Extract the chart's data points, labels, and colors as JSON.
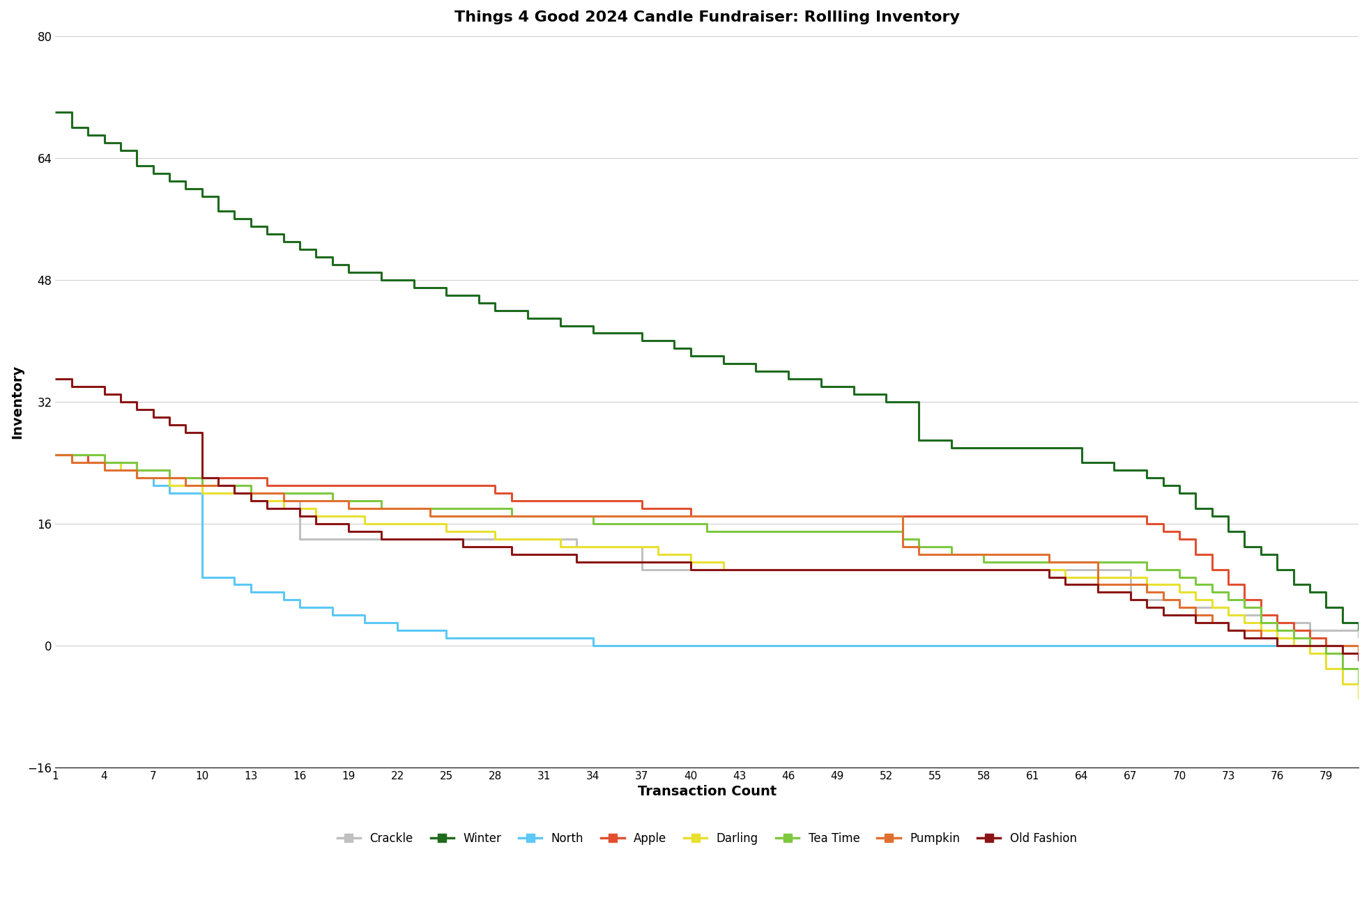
{
  "title": "Things 4 Good 2024 Candle Fundraiser: Rollling Inventory",
  "xlabel": "Transaction Count",
  "ylabel": "Inventory",
  "ylim": [
    -16,
    80
  ],
  "yticks": [
    -16,
    0,
    16,
    32,
    48,
    64,
    80
  ],
  "xticks": [
    1,
    4,
    7,
    10,
    13,
    16,
    19,
    22,
    25,
    28,
    31,
    34,
    37,
    40,
    43,
    46,
    49,
    52,
    55,
    58,
    61,
    64,
    67,
    70,
    73,
    76,
    79
  ],
  "series": {
    "Crackle": {
      "color": "#c0c0c0",
      "data_x": [
        1,
        2,
        3,
        4,
        5,
        6,
        7,
        8,
        9,
        10,
        11,
        12,
        13,
        14,
        15,
        16,
        17,
        18,
        19,
        20,
        21,
        22,
        23,
        24,
        25,
        26,
        27,
        28,
        29,
        30,
        31,
        32,
        33,
        34,
        35,
        36,
        37,
        38,
        39,
        40,
        41,
        42,
        43,
        44,
        45,
        46,
        47,
        48,
        49,
        50,
        51,
        52,
        53,
        54,
        55,
        56,
        57,
        58,
        59,
        60,
        61,
        62,
        63,
        64,
        65,
        66,
        67,
        68,
        69,
        70,
        71,
        72,
        73,
        74,
        75,
        76,
        77,
        78,
        79,
        80,
        81
      ],
      "data_y": [
        25,
        25,
        24,
        24,
        24,
        23,
        23,
        22,
        22,
        21,
        21,
        21,
        20,
        20,
        19,
        14,
        14,
        14,
        14,
        14,
        14,
        14,
        14,
        14,
        14,
        14,
        14,
        14,
        14,
        14,
        14,
        14,
        13,
        13,
        13,
        13,
        10,
        10,
        10,
        10,
        10,
        10,
        10,
        10,
        10,
        10,
        10,
        10,
        10,
        10,
        10,
        10,
        10,
        10,
        10,
        10,
        10,
        10,
        10,
        10,
        10,
        10,
        10,
        10,
        10,
        10,
        6,
        6,
        6,
        5,
        5,
        5,
        4,
        4,
        3,
        3,
        3,
        2,
        2,
        2,
        1
      ]
    },
    "Winter": {
      "color": "#1e6b1e",
      "data_x": [
        1,
        2,
        3,
        4,
        5,
        6,
        7,
        8,
        9,
        10,
        11,
        12,
        13,
        14,
        15,
        16,
        17,
        18,
        19,
        20,
        21,
        22,
        23,
        24,
        25,
        26,
        27,
        28,
        29,
        30,
        31,
        32,
        33,
        34,
        35,
        36,
        37,
        38,
        39,
        40,
        41,
        42,
        43,
        44,
        45,
        46,
        47,
        48,
        49,
        50,
        51,
        52,
        53,
        54,
        55,
        56,
        57,
        58,
        59,
        60,
        61,
        62,
        63,
        64,
        65,
        66,
        67,
        68,
        69,
        70,
        71,
        72,
        73,
        74,
        75,
        76,
        77,
        78,
        79,
        80,
        81
      ],
      "data_y": [
        70,
        68,
        67,
        66,
        65,
        63,
        62,
        61,
        60,
        59,
        57,
        56,
        55,
        54,
        53,
        52,
        51,
        50,
        49,
        49,
        48,
        48,
        47,
        47,
        46,
        46,
        45,
        44,
        44,
        43,
        43,
        42,
        42,
        41,
        41,
        41,
        40,
        40,
        39,
        38,
        38,
        37,
        37,
        36,
        36,
        35,
        35,
        34,
        34,
        33,
        33,
        32,
        32,
        27,
        27,
        26,
        26,
        26,
        26,
        26,
        26,
        26,
        26,
        24,
        24,
        23,
        23,
        22,
        21,
        20,
        18,
        17,
        15,
        13,
        12,
        10,
        8,
        7,
        5,
        3,
        2
      ]
    },
    "North": {
      "color": "#5bc8f5",
      "data_x": [
        1,
        2,
        3,
        4,
        5,
        6,
        7,
        8,
        9,
        10,
        11,
        12,
        13,
        14,
        15,
        16,
        17,
        18,
        19,
        20,
        21,
        22,
        23,
        24,
        25,
        26,
        27,
        28,
        29,
        30,
        31,
        32,
        33,
        34,
        35,
        36,
        37,
        38,
        39,
        40,
        41,
        42,
        43,
        44,
        45,
        46,
        47,
        48,
        49,
        50,
        51,
        52,
        53,
        54,
        55,
        56,
        57,
        58,
        59,
        60,
        61,
        62,
        63,
        64,
        65,
        66,
        67,
        68,
        69,
        70,
        71,
        72,
        73,
        74,
        75,
        76,
        77,
        78,
        79,
        80,
        81
      ],
      "data_y": [
        25,
        25,
        24,
        24,
        23,
        22,
        21,
        20,
        20,
        9,
        9,
        8,
        7,
        7,
        6,
        5,
        5,
        4,
        4,
        3,
        3,
        2,
        2,
        2,
        1,
        1,
        1,
        1,
        1,
        1,
        1,
        1,
        1,
        0,
        0,
        0,
        0,
        0,
        0,
        0,
        0,
        0,
        0,
        0,
        0,
        0,
        0,
        0,
        0,
        0,
        0,
        0,
        0,
        0,
        0,
        0,
        0,
        0,
        0,
        0,
        0,
        0,
        0,
        0,
        0,
        0,
        0,
        0,
        0,
        0,
        0,
        0,
        0,
        0,
        0,
        0,
        0,
        0,
        0,
        0,
        0
      ]
    },
    "Apple": {
      "color": "#e05030",
      "data_x": [
        1,
        2,
        3,
        4,
        5,
        6,
        7,
        8,
        9,
        10,
        11,
        12,
        13,
        14,
        15,
        16,
        17,
        18,
        19,
        20,
        21,
        22,
        23,
        24,
        25,
        26,
        27,
        28,
        29,
        30,
        31,
        32,
        33,
        34,
        35,
        36,
        37,
        38,
        39,
        40,
        41,
        42,
        43,
        44,
        45,
        46,
        47,
        48,
        49,
        50,
        51,
        52,
        53,
        54,
        55,
        56,
        57,
        58,
        59,
        60,
        61,
        62,
        63,
        64,
        65,
        66,
        67,
        68,
        69,
        70,
        71,
        72,
        73,
        74,
        75,
        76,
        77,
        78,
        79,
        80,
        81
      ],
      "data_y": [
        25,
        25,
        24,
        24,
        24,
        23,
        23,
        22,
        22,
        22,
        22,
        22,
        22,
        21,
        21,
        21,
        21,
        21,
        21,
        21,
        21,
        21,
        21,
        21,
        21,
        21,
        21,
        20,
        19,
        19,
        19,
        19,
        19,
        19,
        19,
        19,
        18,
        18,
        18,
        17,
        17,
        17,
        17,
        17,
        17,
        17,
        17,
        17,
        17,
        17,
        17,
        17,
        17,
        17,
        17,
        17,
        17,
        17,
        17,
        17,
        17,
        17,
        17,
        17,
        17,
        17,
        17,
        16,
        15,
        14,
        12,
        10,
        8,
        6,
        4,
        3,
        2,
        1,
        0,
        0,
        -1
      ]
    },
    "Darling": {
      "color": "#e8e030",
      "data_x": [
        1,
        2,
        3,
        4,
        5,
        6,
        7,
        8,
        9,
        10,
        11,
        12,
        13,
        14,
        15,
        16,
        17,
        18,
        19,
        20,
        21,
        22,
        23,
        24,
        25,
        26,
        27,
        28,
        29,
        30,
        31,
        32,
        33,
        34,
        35,
        36,
        37,
        38,
        39,
        40,
        41,
        42,
        43,
        44,
        45,
        46,
        47,
        48,
        49,
        50,
        51,
        52,
        53,
        54,
        55,
        56,
        57,
        58,
        59,
        60,
        61,
        62,
        63,
        64,
        65,
        66,
        67,
        68,
        69,
        70,
        71,
        72,
        73,
        74,
        75,
        76,
        77,
        78,
        79,
        80,
        81
      ],
      "data_y": [
        25,
        24,
        24,
        24,
        23,
        22,
        22,
        21,
        21,
        20,
        20,
        20,
        19,
        19,
        18,
        18,
        17,
        17,
        17,
        16,
        16,
        16,
        16,
        16,
        15,
        15,
        15,
        14,
        14,
        14,
        14,
        13,
        13,
        13,
        13,
        13,
        13,
        12,
        12,
        11,
        11,
        10,
        10,
        10,
        10,
        10,
        10,
        10,
        10,
        10,
        10,
        10,
        10,
        10,
        10,
        10,
        10,
        10,
        10,
        10,
        10,
        10,
        9,
        9,
        9,
        9,
        9,
        8,
        8,
        7,
        6,
        5,
        4,
        3,
        2,
        1,
        0,
        -1,
        -3,
        -5,
        -7
      ]
    },
    "Tea Time": {
      "color": "#7ec840",
      "data_x": [
        1,
        2,
        3,
        4,
        5,
        6,
        7,
        8,
        9,
        10,
        11,
        12,
        13,
        14,
        15,
        16,
        17,
        18,
        19,
        20,
        21,
        22,
        23,
        24,
        25,
        26,
        27,
        28,
        29,
        30,
        31,
        32,
        33,
        34,
        35,
        36,
        37,
        38,
        39,
        40,
        41,
        42,
        43,
        44,
        45,
        46,
        47,
        48,
        49,
        50,
        51,
        52,
        53,
        54,
        55,
        56,
        57,
        58,
        59,
        60,
        61,
        62,
        63,
        64,
        65,
        66,
        67,
        68,
        69,
        70,
        71,
        72,
        73,
        74,
        75,
        76,
        77,
        78,
        79,
        80,
        81
      ],
      "data_y": [
        25,
        25,
        25,
        24,
        24,
        23,
        23,
        22,
        22,
        21,
        21,
        21,
        20,
        20,
        20,
        20,
        20,
        19,
        19,
        19,
        18,
        18,
        18,
        18,
        18,
        18,
        18,
        18,
        17,
        17,
        17,
        17,
        17,
        16,
        16,
        16,
        16,
        16,
        16,
        16,
        15,
        15,
        15,
        15,
        15,
        15,
        15,
        15,
        15,
        15,
        15,
        15,
        14,
        13,
        13,
        12,
        12,
        11,
        11,
        11,
        11,
        11,
        11,
        11,
        11,
        11,
        11,
        10,
        10,
        9,
        8,
        7,
        6,
        5,
        3,
        2,
        1,
        0,
        -1,
        -3,
        -5
      ]
    },
    "Pumpkin": {
      "color": "#e07030",
      "data_x": [
        1,
        2,
        3,
        4,
        5,
        6,
        7,
        8,
        9,
        10,
        11,
        12,
        13,
        14,
        15,
        16,
        17,
        18,
        19,
        20,
        21,
        22,
        23,
        24,
        25,
        26,
        27,
        28,
        29,
        30,
        31,
        32,
        33,
        34,
        35,
        36,
        37,
        38,
        39,
        40,
        41,
        42,
        43,
        44,
        45,
        46,
        47,
        48,
        49,
        50,
        51,
        52,
        53,
        54,
        55,
        56,
        57,
        58,
        59,
        60,
        61,
        62,
        63,
        64,
        65,
        66,
        67,
        68,
        69,
        70,
        71,
        72,
        73,
        74,
        75,
        76,
        77,
        78,
        79,
        80,
        81
      ],
      "data_y": [
        25,
        24,
        24,
        23,
        23,
        22,
        22,
        22,
        21,
        21,
        21,
        20,
        20,
        20,
        19,
        19,
        19,
        19,
        18,
        18,
        18,
        18,
        18,
        17,
        17,
        17,
        17,
        17,
        17,
        17,
        17,
        17,
        17,
        17,
        17,
        17,
        17,
        17,
        17,
        17,
        17,
        17,
        17,
        17,
        17,
        17,
        17,
        17,
        17,
        17,
        17,
        17,
        13,
        12,
        12,
        12,
        12,
        12,
        12,
        12,
        12,
        11,
        11,
        11,
        8,
        8,
        8,
        7,
        6,
        5,
        4,
        3,
        2,
        2,
        1,
        0,
        0,
        0,
        0,
        0,
        -1
      ]
    },
    "Old Fashion": {
      "color": "#8b1515",
      "data_x": [
        1,
        2,
        3,
        4,
        5,
        6,
        7,
        8,
        9,
        10,
        11,
        12,
        13,
        14,
        15,
        16,
        17,
        18,
        19,
        20,
        21,
        22,
        23,
        24,
        25,
        26,
        27,
        28,
        29,
        30,
        31,
        32,
        33,
        34,
        35,
        36,
        37,
        38,
        39,
        40,
        41,
        42,
        43,
        44,
        45,
        46,
        47,
        48,
        49,
        50,
        51,
        52,
        53,
        54,
        55,
        56,
        57,
        58,
        59,
        60,
        61,
        62,
        63,
        64,
        65,
        66,
        67,
        68,
        69,
        70,
        71,
        72,
        73,
        74,
        75,
        76,
        77,
        78,
        79,
        80,
        81
      ],
      "data_y": [
        35,
        34,
        34,
        33,
        32,
        31,
        30,
        29,
        28,
        22,
        21,
        20,
        19,
        18,
        18,
        17,
        16,
        16,
        15,
        15,
        14,
        14,
        14,
        14,
        14,
        13,
        13,
        13,
        12,
        12,
        12,
        12,
        11,
        11,
        11,
        11,
        11,
        11,
        11,
        10,
        10,
        10,
        10,
        10,
        10,
        10,
        10,
        10,
        10,
        10,
        10,
        10,
        10,
        10,
        10,
        10,
        10,
        10,
        10,
        10,
        10,
        9,
        8,
        8,
        7,
        7,
        6,
        5,
        4,
        4,
        3,
        3,
        2,
        1,
        1,
        0,
        0,
        0,
        0,
        -1,
        -2
      ]
    }
  },
  "legend_entries": [
    "Crackle",
    "Winter",
    "North",
    "Apple",
    "Darling",
    "Tea Time",
    "Pumpkin",
    "Old Fashion"
  ],
  "figsize": [
    19.64,
    13.08
  ],
  "dpi": 100
}
